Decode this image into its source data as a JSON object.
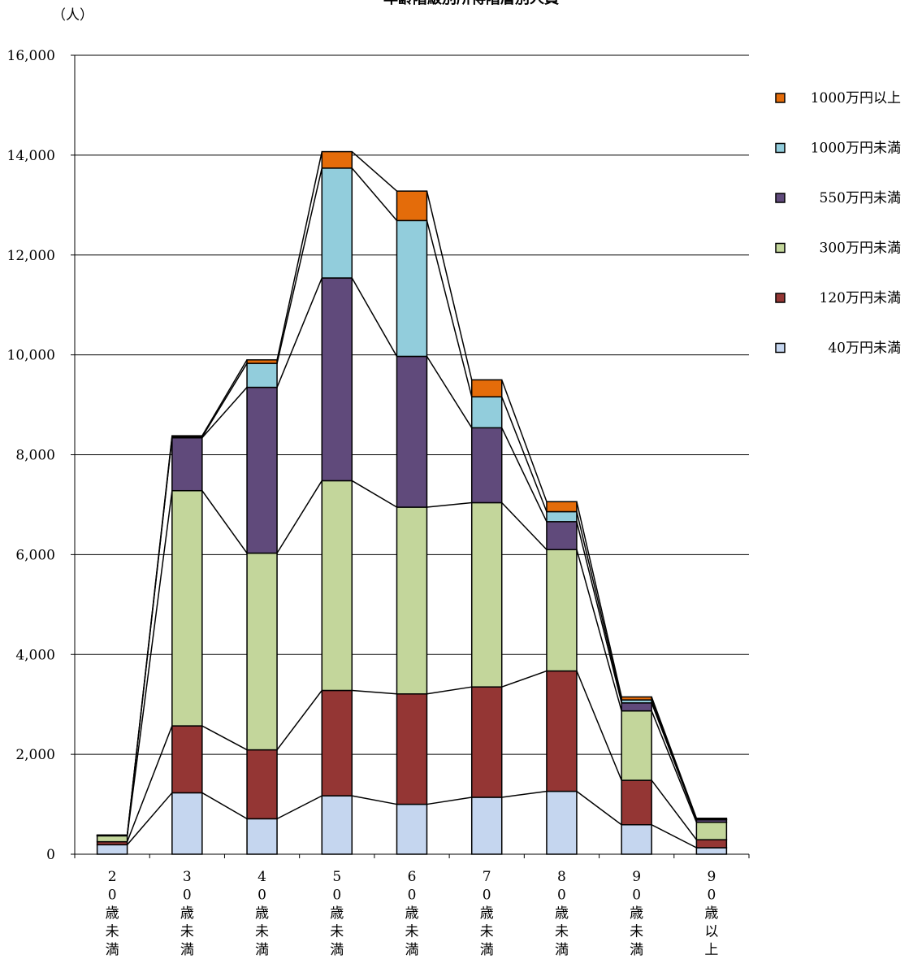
{
  "chart_data": {
    "type": "bar",
    "stacked": true,
    "title": "年齢階級別所得階層別人員",
    "yunit": "（人）",
    "ylim": [
      0,
      16000
    ],
    "yticks": [
      "0",
      "2,000",
      "4,000",
      "6,000",
      "8,000",
      "10,000",
      "12,000",
      "14,000",
      "16,000"
    ],
    "ytick_values": [
      0,
      2000,
      4000,
      6000,
      8000,
      10000,
      12000,
      14000,
      16000
    ],
    "grid": true,
    "categories": [
      "20歳未満",
      "30歳未満",
      "40歳未満",
      "50歳未満",
      "60歳未満",
      "70歳未満",
      "80歳未満",
      "90歳未満",
      "90歳以上"
    ],
    "series": [
      {
        "name": "40万円未満",
        "color": "#c5d6ef",
        "values": [
          190,
          1230,
          710,
          1170,
          1000,
          1140,
          1260,
          590,
          130
        ]
      },
      {
        "name": "120万円未満",
        "color": "#943634",
        "values": [
          60,
          1340,
          1380,
          2110,
          2210,
          2210,
          2410,
          890,
          160
        ]
      },
      {
        "name": "300万円未満",
        "color": "#c3d69b",
        "values": [
          120,
          4710,
          3940,
          4200,
          3740,
          3690,
          2430,
          1390,
          350
        ]
      },
      {
        "name": "550万円未満",
        "color": "#604a7b",
        "values": [
          5,
          1060,
          3320,
          4060,
          3020,
          1500,
          560,
          160,
          50
        ]
      },
      {
        "name": "1000万円未満",
        "color": "#92cddc",
        "values": [
          5,
          15,
          480,
          2200,
          2720,
          620,
          200,
          60,
          10
        ]
      },
      {
        "name": "1000万円以上",
        "color": "#e46c0a",
        "values": [
          5,
          25,
          70,
          330,
          590,
          340,
          200,
          60,
          20
        ]
      }
    ],
    "legend_placement": "right",
    "legend_order": [
      "1000万円以上",
      "1000万円未満",
      "550万円未満",
      "300万円未満",
      "120万円未満",
      "40万円未満"
    ],
    "legend_labels": [
      "1000万円以上",
      "1000万円未満",
      "550万円未満",
      "300万円未満",
      "120万円未満",
      "40万円未満"
    ]
  }
}
